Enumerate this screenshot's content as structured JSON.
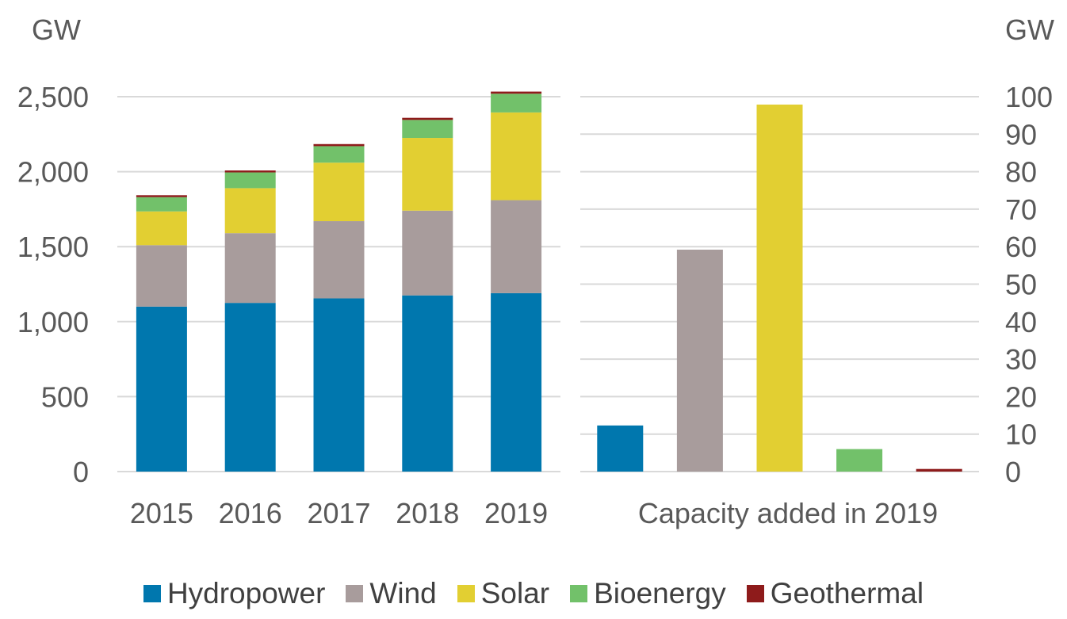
{
  "chart_data": [
    {
      "type": "bar",
      "stacked": true,
      "ylabel": "GW",
      "ylim": [
        0,
        2500
      ],
      "yticks": [
        "0",
        "500",
        "1,000",
        "1,500",
        "2,000",
        "2,500"
      ],
      "grid": true,
      "categories": [
        "2015",
        "2016",
        "2017",
        "2018",
        "2019"
      ],
      "series": [
        {
          "name": "Hydropower",
          "color": "#0077AE",
          "values": [
            1100,
            1125,
            1155,
            1175,
            1190
          ]
        },
        {
          "name": "Wind",
          "color": "#A89C9C",
          "values": [
            410,
            465,
            515,
            565,
            620
          ]
        },
        {
          "name": "Solar",
          "color": "#E2CF32",
          "values": [
            225,
            300,
            390,
            485,
            585
          ]
        },
        {
          "name": "Bioenergy",
          "color": "#72C16A",
          "values": [
            95,
            105,
            110,
            120,
            125
          ]
        },
        {
          "name": "Geothermal",
          "color": "#8E1B1B",
          "values": [
            13,
            13,
            14,
            14,
            14
          ]
        }
      ]
    },
    {
      "type": "bar",
      "xlabel": "Capacity added in 2019",
      "ylabel": "GW",
      "ylim": [
        0,
        100
      ],
      "yticks": [
        "0",
        "10",
        "20",
        "30",
        "40",
        "50",
        "60",
        "70",
        "80",
        "90",
        "100"
      ],
      "grid": true,
      "categories": [
        "Hydropower",
        "Wind",
        "Solar",
        "Bioenergy",
        "Geothermal"
      ],
      "values": [
        12.3,
        59.2,
        97.9,
        6.0,
        0.7
      ],
      "colors": [
        "#0077AE",
        "#A89C9C",
        "#E2CF32",
        "#72C16A",
        "#8E1B1B"
      ]
    }
  ],
  "legend": [
    {
      "label": "Hydropower",
      "color": "#0077AE"
    },
    {
      "label": "Wind",
      "color": "#A89C9C"
    },
    {
      "label": "Solar",
      "color": "#E2CF32"
    },
    {
      "label": "Bioenergy",
      "color": "#72C16A"
    },
    {
      "label": "Geothermal",
      "color": "#8E1B1B"
    }
  ]
}
